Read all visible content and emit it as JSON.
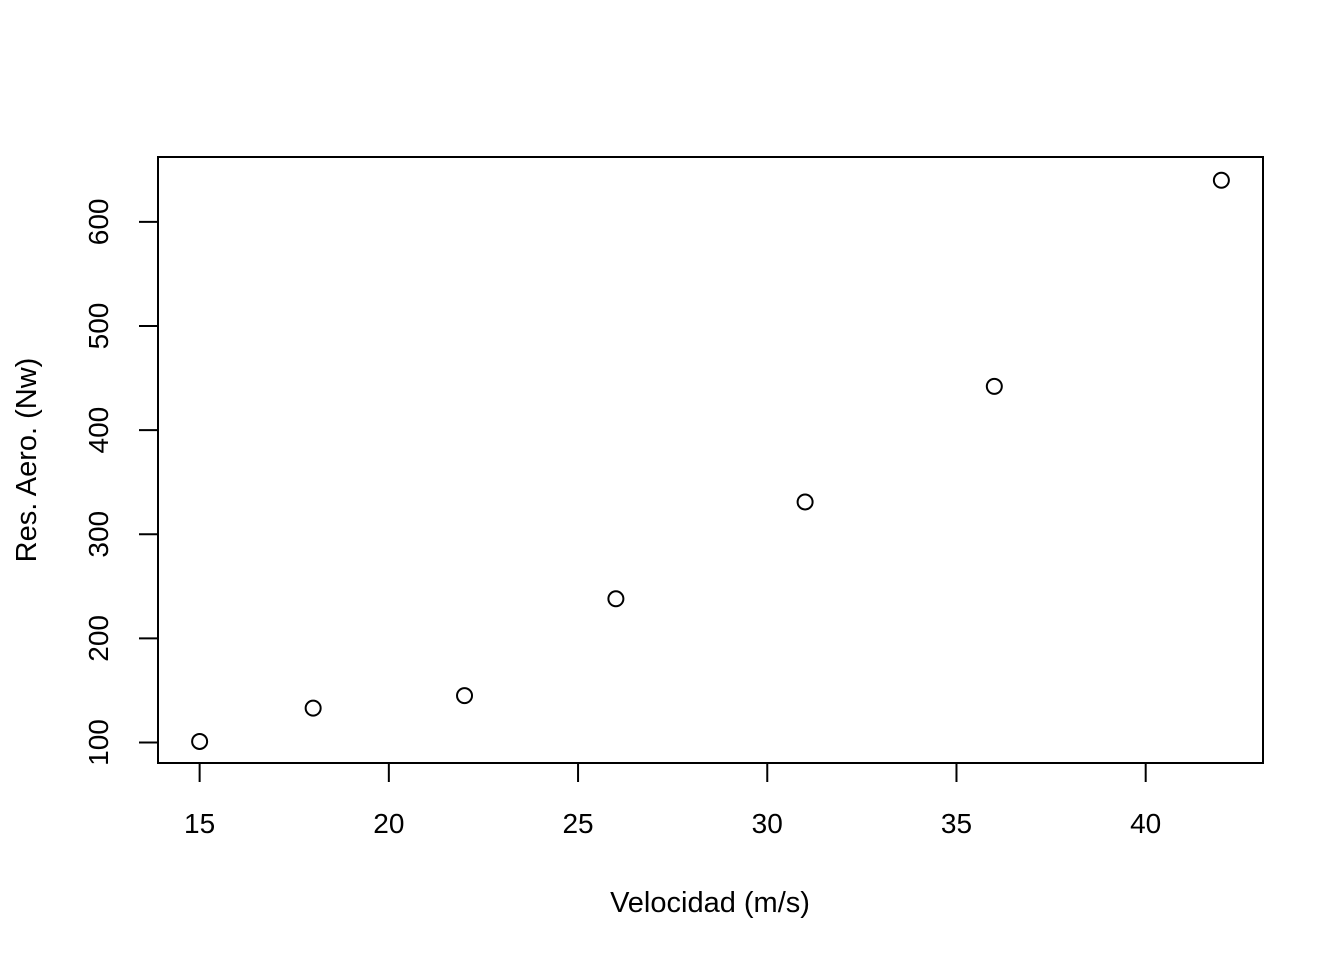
{
  "chart_data": {
    "type": "scatter",
    "title": "",
    "xlabel": "Velocidad (m/s)",
    "ylabel": "Res. Aero. (Nw)",
    "xlim": [
      13.9,
      43.1
    ],
    "ylim": [
      80.3,
      662.3
    ],
    "x_ticks": [
      15,
      20,
      25,
      30,
      35,
      40
    ],
    "y_ticks": [
      100,
      200,
      300,
      400,
      500,
      600
    ],
    "grid": false,
    "legend": "none",
    "marker": "open-circle",
    "series": [
      {
        "x": [
          15,
          18,
          22,
          26,
          31,
          36,
          42
        ],
        "y": [
          101,
          133,
          145,
          238,
          331,
          442,
          640
        ]
      }
    ],
    "colors": {
      "points": "#000000",
      "axes": "#000000",
      "background": "#ffffff"
    }
  }
}
